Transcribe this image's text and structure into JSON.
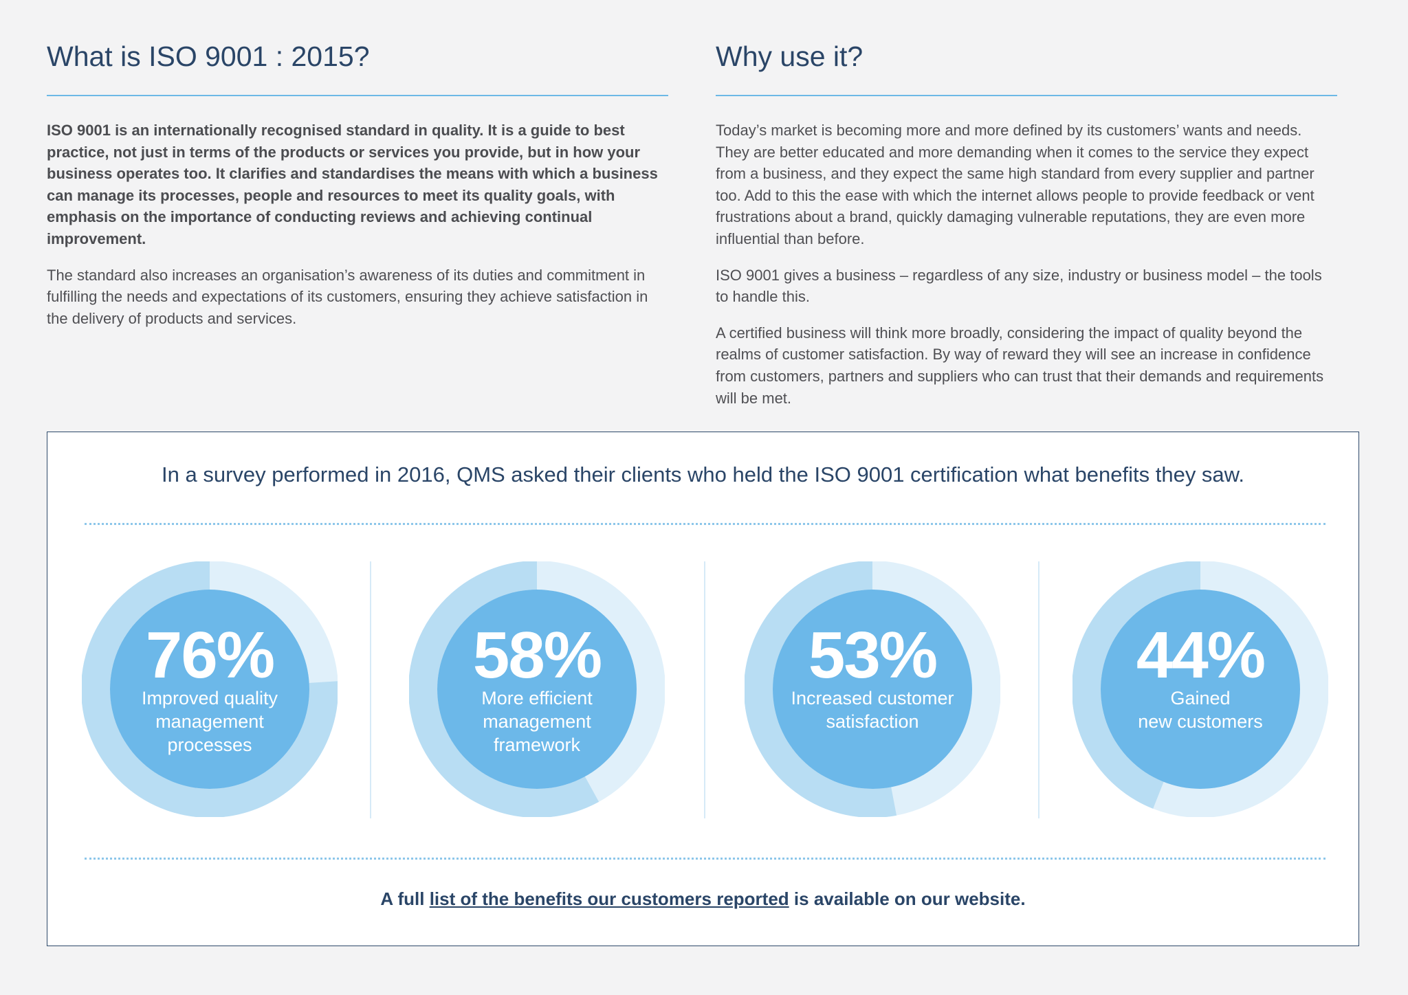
{
  "left_column": {
    "heading": "What is ISO 9001 : 2015?",
    "intro_bold": "ISO 9001 is an internationally recognised standard in quality. It is a guide to best practice, not just in terms of the products or services you provide, but in how your business operates too. It clarifies and standardises the means with which a business can manage its processes, people and resources to meet its quality goals, with emphasis on the importance of conducting reviews and achieving continual improvement.",
    "paragraph": "The standard also increases an organisation’s awareness of its duties and commitment in fulfilling the needs and expectations of its customers, ensuring they achieve satisfaction in the delivery of products and services."
  },
  "right_column": {
    "heading": "Why use it?",
    "paragraphs": [
      "Today’s market is becoming more and more defined by its customers’ wants and needs. They are better educated and more demanding when it comes to the service they expect from a business, and they expect the same high standard from every supplier and partner too. Add to this the ease with which the internet allows people to provide feedback or vent frustrations about a brand, quickly damaging vulnerable reputations, they are even more influential than before.",
      "ISO 9001 gives a business – regardless of any size, industry or business model – the tools to handle this.",
      "A certified business will think more broadly, considering the impact of quality beyond the realms of customer satisfaction. By way of reward they will see an increase in confidence from customers, partners and suppliers who can trust that their demands and requirements will be met."
    ]
  },
  "survey": {
    "title": "In a survey performed in 2016, QMS asked their clients who held the ISO 9001 certification what benefits they saw.",
    "stats": [
      {
        "percent": 76,
        "display": "76%",
        "label_lines": [
          "Improved quality",
          "management",
          "processes"
        ]
      },
      {
        "percent": 58,
        "display": "58%",
        "label_lines": [
          "More efficient",
          "management",
          "framework"
        ]
      },
      {
        "percent": 53,
        "display": "53%",
        "label_lines": [
          "Increased customer",
          "satisfaction"
        ]
      },
      {
        "percent": 44,
        "display": "44%",
        "label_lines": [
          "Gained",
          "new customers"
        ]
      }
    ],
    "footnote_prefix": "A full",
    "footnote_link": "list of the benefits our customers reported",
    "footnote_suffix": "is available on our website."
  },
  "colors": {
    "heading": "#2a4567",
    "accent": "#6cb8e6",
    "donut_inner": "#6cb8e9",
    "donut_filled": "#b8ddf3",
    "donut_track": "#e0f0fa"
  }
}
